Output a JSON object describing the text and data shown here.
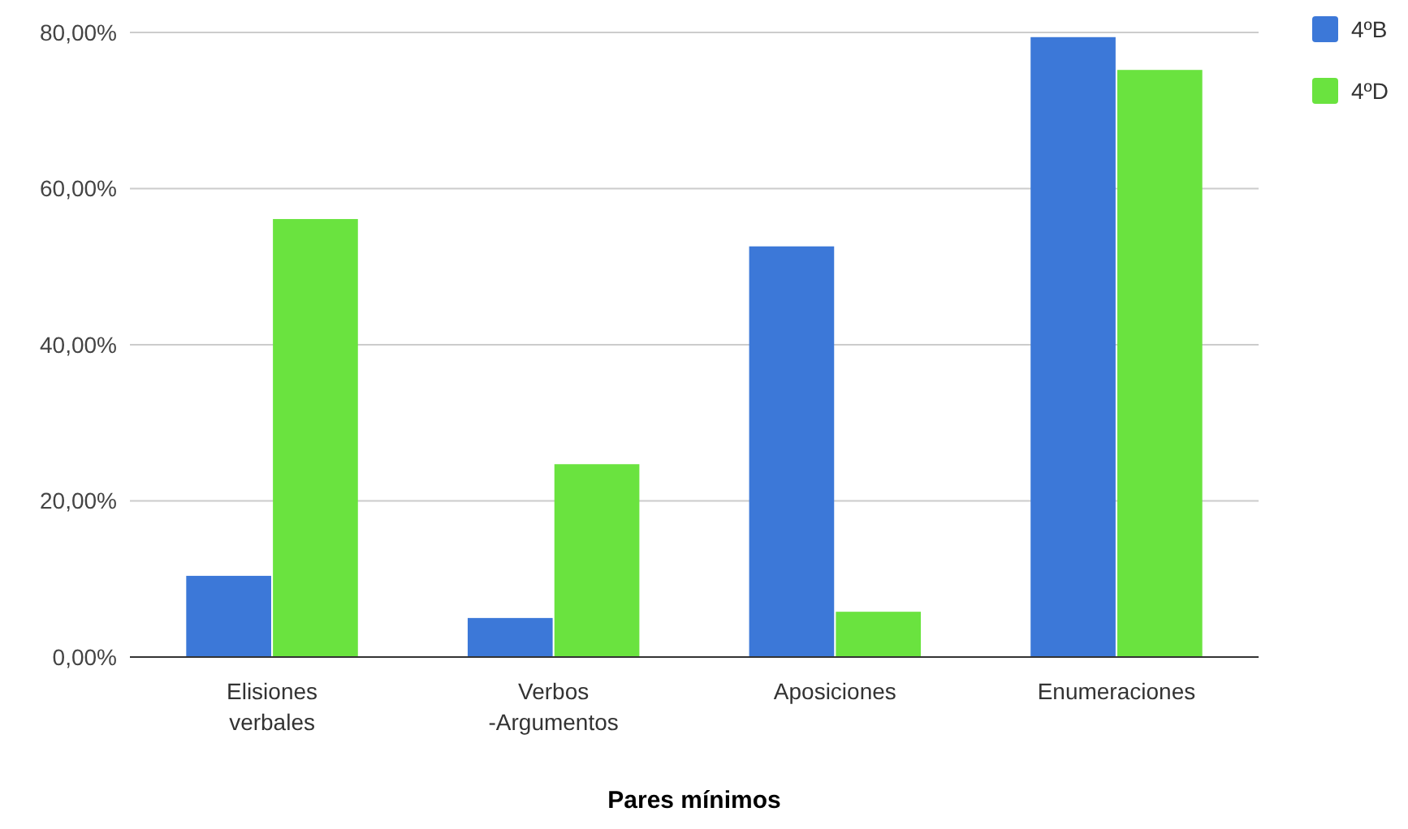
{
  "chart_data": {
    "type": "bar",
    "xlabel": "Pares mínimos",
    "categories": [
      "Elisiones verbales",
      "Verbos -Argumentos",
      "Aposiciones",
      "Enumeraciones"
    ],
    "series": [
      {
        "name": "4ºB",
        "color": "#3c78d8",
        "values": [
          10.4,
          5.0,
          52.6,
          79.4
        ]
      },
      {
        "name": "4ºD",
        "color": "#6ae33f",
        "values": [
          56.1,
          24.7,
          5.8,
          75.2
        ]
      }
    ],
    "ylim": [
      0,
      80
    ],
    "yticks": [
      {
        "value": 0,
        "label": "0,00%"
      },
      {
        "value": 20,
        "label": "20,00%"
      },
      {
        "value": 40,
        "label": "40,00%"
      },
      {
        "value": 60,
        "label": "60,00%"
      },
      {
        "value": 80,
        "label": "80,00%"
      }
    ],
    "grid": "y",
    "legend": "top right"
  }
}
